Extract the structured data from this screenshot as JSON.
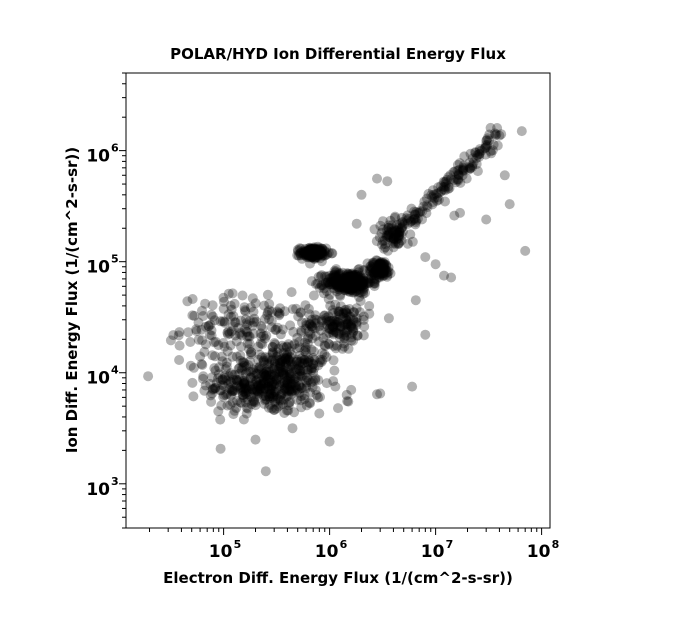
{
  "chart_data": {
    "type": "scatter",
    "title": "POLAR/HYD  Ion Differential Energy Flux",
    "xlabel": "Electron Diff. Energy Flux (1/(cm^2-s-sr))",
    "ylabel": "Ion Diff. Energy Flux (1/(cm^2-s-sr))",
    "x_scale": "log",
    "y_scale": "log",
    "xlim": [
      12000,
      120000000
    ],
    "ylim": [
      400,
      5000000
    ],
    "x_ticks": [
      {
        "base": "10",
        "exp": "5",
        "value": 100000
      },
      {
        "base": "10",
        "exp": "6",
        "value": 1000000
      },
      {
        "base": "10",
        "exp": "7",
        "value": 10000000
      },
      {
        "base": "10",
        "exp": "8",
        "value": 100000000
      }
    ],
    "y_ticks": [
      {
        "base": "10",
        "exp": "3",
        "value": 1000
      },
      {
        "base": "10",
        "exp": "4",
        "value": 10000
      },
      {
        "base": "10",
        "exp": "5",
        "value": 100000
      },
      {
        "base": "10",
        "exp": "6",
        "value": 1000000
      }
    ],
    "grid": false,
    "legend": "none",
    "marker_color": "#000000",
    "marker_alpha": 0.3,
    "clusters": [
      {
        "x_center": 250000,
        "y_center": 8000,
        "x_spread": 0.55,
        "y_spread": 0.28,
        "count": 420
      },
      {
        "x_center": 160000,
        "y_center": 25000,
        "x_spread": 0.6,
        "y_spread": 0.3,
        "count": 160
      },
      {
        "x_center": 700000,
        "y_center": 120000,
        "x_spread": 0.12,
        "y_spread": 0.05,
        "count": 170
      },
      {
        "x_center": 1500000,
        "y_center": 65000,
        "x_spread": 0.22,
        "y_spread": 0.1,
        "count": 280
      },
      {
        "x_center": 3000000,
        "y_center": 85000,
        "x_spread": 0.12,
        "y_spread": 0.08,
        "count": 90
      },
      {
        "x_center": 1200000,
        "y_center": 28000,
        "x_spread": 0.3,
        "y_spread": 0.2,
        "count": 150
      },
      {
        "x_center": 500000,
        "y_center": 13000,
        "x_spread": 0.3,
        "y_spread": 0.22,
        "count": 80
      },
      {
        "x_center": 4000000,
        "y_center": 180000,
        "x_spread": 0.16,
        "y_spread": 0.12,
        "count": 40
      }
    ],
    "diagonal_band": {
      "x_from": 3000000,
      "x_to": 40000000,
      "y_from": 130000,
      "y_to": 1400000,
      "count": 170
    },
    "outliers": [
      {
        "x": 60000,
        "y": 14000
      },
      {
        "x": 62000,
        "y": 12000
      },
      {
        "x": 200000,
        "y": 2500
      },
      {
        "x": 250000,
        "y": 1300
      },
      {
        "x": 1000000,
        "y": 2400
      },
      {
        "x": 6000000,
        "y": 7500
      },
      {
        "x": 8000000,
        "y": 22000
      },
      {
        "x": 12000000,
        "y": 75000
      },
      {
        "x": 14000000,
        "y": 72000
      },
      {
        "x": 10000000,
        "y": 95000
      },
      {
        "x": 30000000,
        "y": 240000
      },
      {
        "x": 50000000,
        "y": 330000
      },
      {
        "x": 70000000,
        "y": 125000
      },
      {
        "x": 45000000,
        "y": 600000
      },
      {
        "x": 2000000,
        "y": 400000
      },
      {
        "x": 2800000,
        "y": 560000
      },
      {
        "x": 3500000,
        "y": 530000
      },
      {
        "x": 65000000,
        "y": 1500000
      },
      {
        "x": 38000000,
        "y": 1600000
      },
      {
        "x": 1800000,
        "y": 220000
      },
      {
        "x": 6500000,
        "y": 45000
      },
      {
        "x": 2800000,
        "y": 6400
      },
      {
        "x": 3000000,
        "y": 6500
      },
      {
        "x": 800000,
        "y": 4300
      },
      {
        "x": 1500000,
        "y": 5500
      },
      {
        "x": 1600000,
        "y": 7000
      },
      {
        "x": 15000000,
        "y": 260000
      },
      {
        "x": 17000000,
        "y": 275000
      },
      {
        "x": 8000000,
        "y": 110000
      },
      {
        "x": 1200000,
        "y": 4800
      }
    ]
  }
}
